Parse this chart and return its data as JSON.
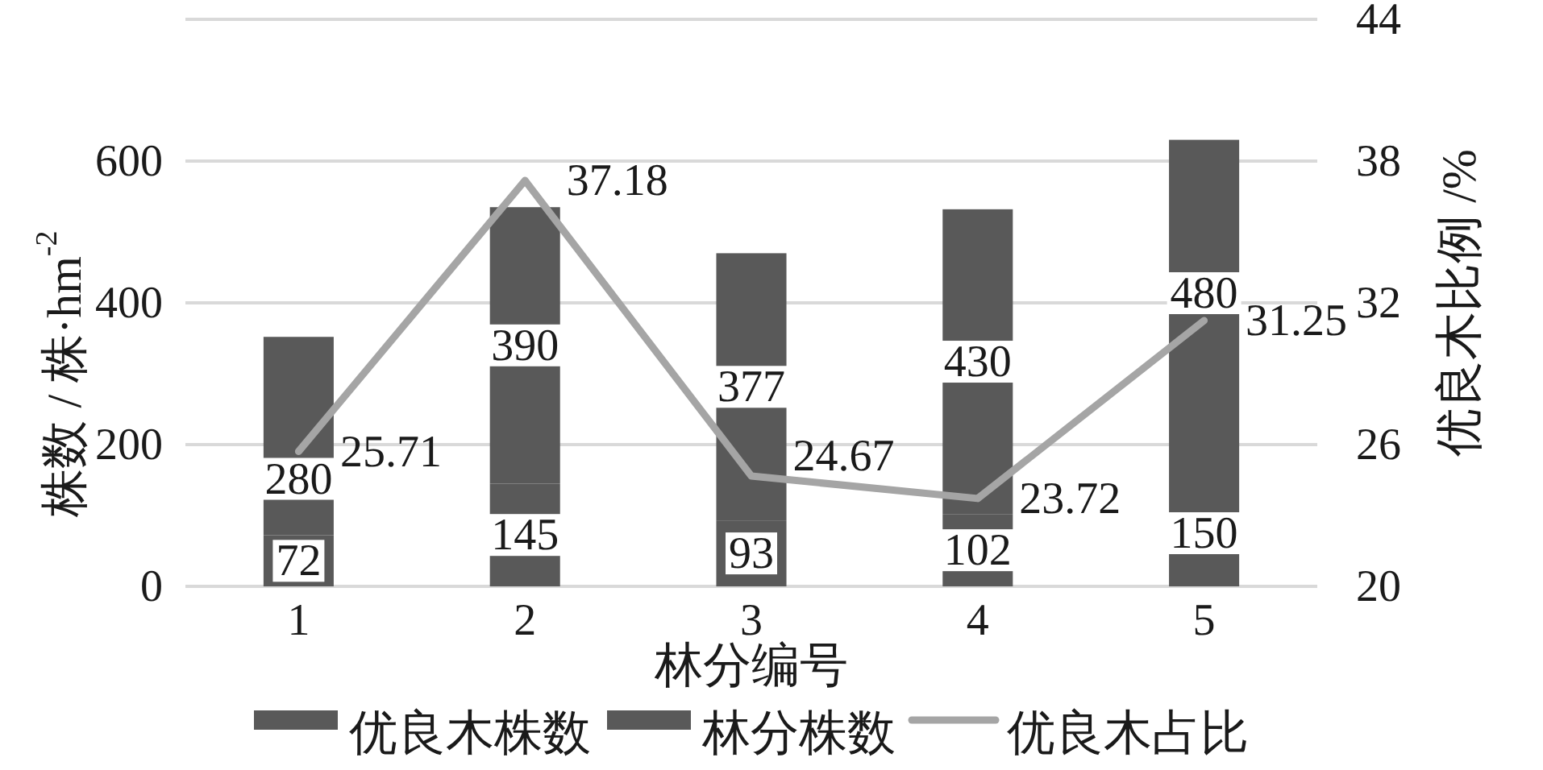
{
  "chart_data": {
    "type": "bar",
    "stacked": true,
    "categories": [
      "1",
      "2",
      "3",
      "4",
      "5"
    ],
    "xlabel": "林分编号",
    "ylabel": "株数 / 株·hm$^{-2}$",
    "y2label": "优良木比例 /%",
    "ylim": [
      0,
      800
    ],
    "yticks": [
      0,
      200,
      400,
      600,
      {
        "value": 800,
        "label": null
      }
    ],
    "y2lim": [
      20,
      44
    ],
    "y2ticks": [
      20,
      26,
      32,
      38,
      44
    ],
    "grid": "y",
    "legend": "bottom",
    "data_labels": true,
    "series": [
      {
        "name": "优良木株数",
        "color": "#595959",
        "values": [
          72,
          145,
          93,
          102,
          150
        ]
      },
      {
        "name": "林分株数",
        "color": "#595959",
        "values": [
          280,
          390,
          377,
          430,
          480
        ]
      },
      {
        "name": "优良木占比",
        "type": "line",
        "axis": "y2",
        "color": "#a5a5a5",
        "values": [
          25.71,
          37.18,
          24.67,
          23.72,
          31.25
        ]
      }
    ]
  }
}
